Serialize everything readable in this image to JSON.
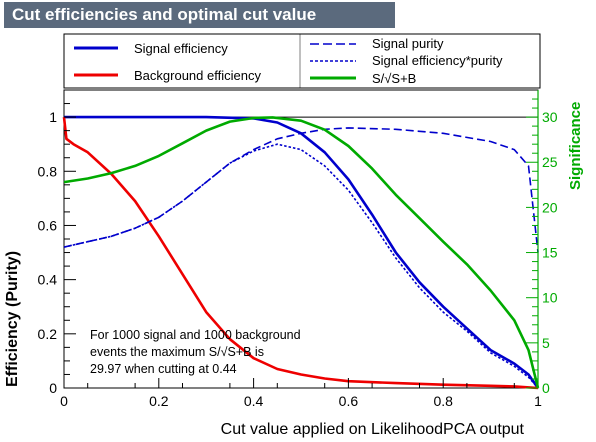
{
  "chart_data": {
    "type": "line",
    "title": "Cut efficiencies and optimal cut value",
    "xlabel": "Cut value applied on LikelihoodPCA output",
    "ylabel": "Efficiency (Purity)",
    "y2label": "Significance",
    "xlim": [
      0,
      1
    ],
    "ylim": [
      0,
      1.1
    ],
    "y2lim": [
      0,
      33
    ],
    "x_ticks": [
      "0",
      "0.2",
      "0.4",
      "0.6",
      "0.8",
      "1"
    ],
    "y_ticks": [
      "0",
      "0.2",
      "0.4",
      "0.6",
      "0.8",
      "1"
    ],
    "y2_ticks": [
      "0",
      "5",
      "10",
      "15",
      "20",
      "25",
      "30"
    ],
    "legend_placement": "top",
    "colors": {
      "signal": "#0000cc",
      "background": "#ee0000",
      "significance": "#00aa00",
      "right_axis": "#00aa00"
    },
    "series": [
      {
        "name": "Signal efficiency",
        "axis": "left",
        "style": "solid",
        "color": "#0000cc",
        "x": [
          0,
          0.05,
          0.1,
          0.2,
          0.3,
          0.4,
          0.45,
          0.5,
          0.55,
          0.6,
          0.65,
          0.7,
          0.75,
          0.8,
          0.85,
          0.9,
          0.95,
          0.98,
          1.0
        ],
        "y": [
          1.0,
          1.0,
          1.0,
          1.0,
          1.0,
          0.995,
          0.98,
          0.94,
          0.87,
          0.77,
          0.64,
          0.5,
          0.39,
          0.3,
          0.22,
          0.14,
          0.09,
          0.05,
          0.0
        ]
      },
      {
        "name": "Background efficiency",
        "axis": "left",
        "style": "solid",
        "color": "#ee0000",
        "x": [
          0,
          0.005,
          0.02,
          0.05,
          0.1,
          0.15,
          0.2,
          0.25,
          0.3,
          0.35,
          0.4,
          0.45,
          0.5,
          0.55,
          0.6,
          0.7,
          0.8,
          0.9,
          0.95,
          1.0
        ],
        "y": [
          1.0,
          0.92,
          0.9,
          0.87,
          0.79,
          0.69,
          0.56,
          0.42,
          0.28,
          0.18,
          0.11,
          0.07,
          0.05,
          0.035,
          0.025,
          0.018,
          0.012,
          0.008,
          0.006,
          0.0
        ]
      },
      {
        "name": "Signal purity",
        "axis": "left",
        "style": "dashed",
        "color": "#0000cc",
        "x": [
          0,
          0.05,
          0.1,
          0.15,
          0.2,
          0.25,
          0.3,
          0.35,
          0.4,
          0.45,
          0.5,
          0.55,
          0.6,
          0.7,
          0.8,
          0.9,
          0.95,
          0.98,
          1.0
        ],
        "y": [
          0.52,
          0.54,
          0.56,
          0.59,
          0.63,
          0.69,
          0.76,
          0.83,
          0.88,
          0.92,
          0.94,
          0.955,
          0.96,
          0.955,
          0.94,
          0.91,
          0.88,
          0.82,
          0.5
        ]
      },
      {
        "name": "Signal efficiency*purity",
        "axis": "left",
        "style": "dotted",
        "color": "#0000cc",
        "x": [
          0,
          0.05,
          0.1,
          0.15,
          0.2,
          0.25,
          0.3,
          0.35,
          0.4,
          0.45,
          0.5,
          0.55,
          0.6,
          0.65,
          0.7,
          0.75,
          0.8,
          0.85,
          0.9,
          0.95,
          0.98,
          1.0
        ],
        "y": [
          0.52,
          0.54,
          0.56,
          0.59,
          0.63,
          0.69,
          0.76,
          0.83,
          0.875,
          0.9,
          0.88,
          0.82,
          0.73,
          0.61,
          0.48,
          0.37,
          0.28,
          0.21,
          0.13,
          0.08,
          0.04,
          0.0
        ]
      },
      {
        "name": "S/√S+B",
        "axis": "right",
        "style": "solid",
        "color": "#00aa00",
        "x": [
          0,
          0.05,
          0.1,
          0.15,
          0.2,
          0.25,
          0.3,
          0.35,
          0.4,
          0.44,
          0.5,
          0.55,
          0.6,
          0.65,
          0.7,
          0.75,
          0.8,
          0.85,
          0.9,
          0.95,
          0.98,
          1.0
        ],
        "y": [
          22.8,
          23.2,
          23.8,
          24.6,
          25.7,
          27.1,
          28.5,
          29.5,
          29.9,
          29.97,
          29.6,
          28.6,
          26.8,
          24.3,
          21.4,
          18.8,
          16.2,
          13.7,
          10.8,
          7.5,
          4.2,
          0
        ]
      }
    ],
    "annotation": {
      "line1": "For 1000 signal and 1000 background",
      "line2": "events the maximum S/√S+B is",
      "line3": "29.97 when cutting at  0.44"
    }
  }
}
